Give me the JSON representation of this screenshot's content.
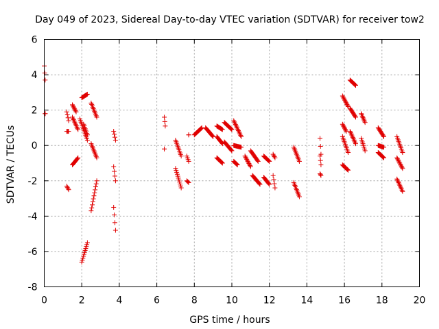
{
  "chart_data": {
    "type": "scatter",
    "title": "Day 049 of 2023, Sidereal Day-to-day VTEC variation (SDTVAR) for receiver tow2",
    "xlabel": "GPS time / hours",
    "ylabel": "SDTVAR / TECUs",
    "xlim": [
      0,
      20
    ],
    "ylim": [
      -8,
      6
    ],
    "xticks": [
      0,
      2,
      4,
      6,
      8,
      10,
      12,
      14,
      16,
      18,
      20
    ],
    "yticks": [
      -8,
      -6,
      -4,
      -2,
      0,
      2,
      4,
      6
    ],
    "grid": true,
    "marker": "plus",
    "marker_color": "#e00000",
    "segments": [
      {
        "x": [
          0.0,
          0.05
        ],
        "y": [
          4.5,
          3.7
        ]
      },
      {
        "x": [
          0.05,
          0.05
        ],
        "y": [
          1.8,
          1.8
        ]
      },
      {
        "x": [
          1.2,
          1.3
        ],
        "y": [
          1.9,
          1.4
        ]
      },
      {
        "x": [
          1.2,
          1.3
        ],
        "y": [
          0.8,
          0.8
        ]
      },
      {
        "x": [
          1.2,
          1.3
        ],
        "y": [
          -2.3,
          -2.5
        ]
      },
      {
        "x": [
          1.5,
          1.7
        ],
        "y": [
          2.3,
          1.9
        ]
      },
      {
        "x": [
          1.5,
          1.8
        ],
        "y": [
          1.6,
          0.9
        ]
      },
      {
        "x": [
          1.5,
          1.8
        ],
        "y": [
          -1.1,
          -0.7
        ]
      },
      {
        "x": [
          1.9,
          2.3
        ],
        "y": [
          1.5,
          0.3
        ]
      },
      {
        "x": [
          2.0,
          2.3
        ],
        "y": [
          2.7,
          2.9
        ]
      },
      {
        "x": [
          2.0,
          2.3
        ],
        "y": [
          -6.6,
          -5.5
        ]
      },
      {
        "x": [
          2.1,
          2.3
        ],
        "y": [
          1.2,
          0.6
        ]
      },
      {
        "x": [
          2.5,
          2.8
        ],
        "y": [
          2.4,
          1.6
        ]
      },
      {
        "x": [
          2.5,
          2.8
        ],
        "y": [
          0.1,
          -0.7
        ]
      },
      {
        "x": [
          2.5,
          2.8
        ],
        "y": [
          -3.7,
          -2.0
        ]
      },
      {
        "x": [
          3.7,
          3.8
        ],
        "y": [
          0.8,
          0.3
        ]
      },
      {
        "x": [
          3.7,
          3.8
        ],
        "y": [
          -1.2,
          -2.0
        ]
      },
      {
        "x": [
          3.7,
          3.8
        ],
        "y": [
          -3.5,
          -4.8
        ]
      },
      {
        "x": [
          6.4,
          6.45
        ],
        "y": [
          1.6,
          1.1
        ]
      },
      {
        "x": [
          6.4,
          6.4
        ],
        "y": [
          -0.2,
          -0.2
        ]
      },
      {
        "x": [
          7.0,
          7.3
        ],
        "y": [
          0.3,
          -0.6
        ]
      },
      {
        "x": [
          7.0,
          7.3
        ],
        "y": [
          -1.3,
          -2.4
        ]
      },
      {
        "x": [
          7.6,
          7.7
        ],
        "y": [
          -0.6,
          -0.9
        ]
      },
      {
        "x": [
          7.6,
          7.7
        ],
        "y": [
          -2.0,
          -2.1
        ]
      },
      {
        "x": [
          7.7,
          7.7
        ],
        "y": [
          0.6,
          0.6
        ]
      },
      {
        "x": [
          8.0,
          8.4
        ],
        "y": [
          0.6,
          1.0
        ]
      },
      {
        "x": [
          8.6,
          9.0
        ],
        "y": [
          1.0,
          0.5
        ]
      },
      {
        "x": [
          9.2,
          9.5
        ],
        "y": [
          1.1,
          0.9
        ]
      },
      {
        "x": [
          9.2,
          9.5
        ],
        "y": [
          0.5,
          0.1
        ]
      },
      {
        "x": [
          9.2,
          9.5
        ],
        "y": [
          -0.7,
          -1.0
        ]
      },
      {
        "x": [
          9.6,
          10.0
        ],
        "y": [
          1.3,
          0.9
        ]
      },
      {
        "x": [
          9.6,
          10.0
        ],
        "y": [
          0.2,
          -0.3
        ]
      },
      {
        "x": [
          10.1,
          10.5
        ],
        "y": [
          1.4,
          0.5
        ]
      },
      {
        "x": [
          10.1,
          10.5
        ],
        "y": [
          0.0,
          -0.1
        ]
      },
      {
        "x": [
          10.1,
          10.3
        ],
        "y": [
          -0.9,
          -1.1
        ]
      },
      {
        "x": [
          10.7,
          11.0
        ],
        "y": [
          -0.6,
          -1.2
        ]
      },
      {
        "x": [
          11.0,
          11.4
        ],
        "y": [
          -0.3,
          -0.9
        ]
      },
      {
        "x": [
          11.1,
          11.5
        ],
        "y": [
          -1.7,
          -2.2
        ]
      },
      {
        "x": [
          11.7,
          12.0
        ],
        "y": [
          -0.6,
          -0.9
        ]
      },
      {
        "x": [
          11.7,
          12.0
        ],
        "y": [
          -1.8,
          -2.2
        ]
      },
      {
        "x": [
          12.2,
          12.3
        ],
        "y": [
          -0.5,
          -0.7
        ]
      },
      {
        "x": [
          12.2,
          12.3
        ],
        "y": [
          -1.7,
          -2.4
        ]
      },
      {
        "x": [
          13.3,
          13.6
        ],
        "y": [
          -0.1,
          -0.9
        ]
      },
      {
        "x": [
          13.3,
          13.6
        ],
        "y": [
          -2.1,
          -2.9
        ]
      },
      {
        "x": [
          14.7,
          14.75
        ],
        "y": [
          0.4,
          -0.5
        ]
      },
      {
        "x": [
          14.7,
          14.75
        ],
        "y": [
          -0.6,
          -1.1
        ]
      },
      {
        "x": [
          14.7,
          14.75
        ],
        "y": [
          -1.6,
          -1.7
        ]
      },
      {
        "x": [
          15.9,
          16.2
        ],
        "y": [
          2.8,
          2.2
        ]
      },
      {
        "x": [
          15.9,
          16.1
        ],
        "y": [
          1.2,
          0.8
        ]
      },
      {
        "x": [
          15.9,
          16.2
        ],
        "y": [
          0.5,
          -0.4
        ]
      },
      {
        "x": [
          15.9,
          16.2
        ],
        "y": [
          -1.1,
          -1.4
        ]
      },
      {
        "x": [
          16.3,
          16.6
        ],
        "y": [
          3.7,
          3.4
        ]
      },
      {
        "x": [
          16.3,
          16.6
        ],
        "y": [
          2.1,
          1.6
        ]
      },
      {
        "x": [
          16.3,
          16.6
        ],
        "y": [
          0.8,
          0.1
        ]
      },
      {
        "x": [
          16.9,
          17.1
        ],
        "y": [
          1.8,
          1.3
        ]
      },
      {
        "x": [
          16.9,
          17.1
        ],
        "y": [
          0.4,
          -0.3
        ]
      },
      {
        "x": [
          17.8,
          18.1
        ],
        "y": [
          1.0,
          0.5
        ]
      },
      {
        "x": [
          17.8,
          18.1
        ],
        "y": [
          0.0,
          -0.1
        ]
      },
      {
        "x": [
          17.8,
          18.1
        ],
        "y": [
          -0.4,
          -0.7
        ]
      },
      {
        "x": [
          18.8,
          19.1
        ],
        "y": [
          0.5,
          -0.4
        ]
      },
      {
        "x": [
          18.8,
          19.1
        ],
        "y": [
          -0.7,
          -1.3
        ]
      },
      {
        "x": [
          18.8,
          19.1
        ],
        "y": [
          -1.9,
          -2.6
        ]
      }
    ]
  }
}
